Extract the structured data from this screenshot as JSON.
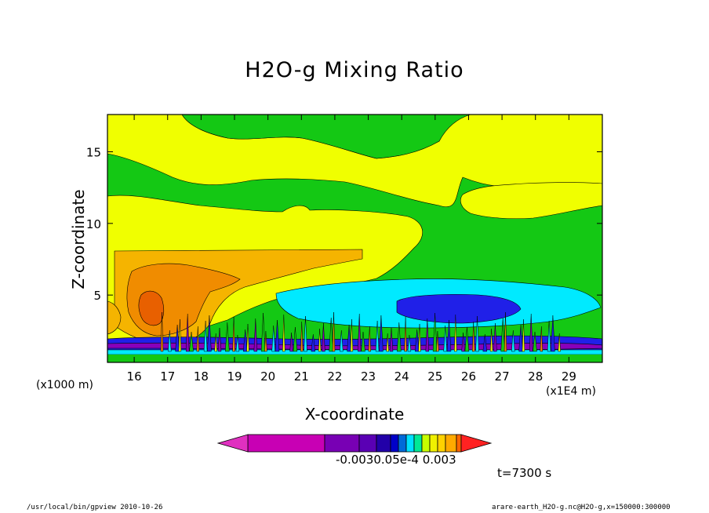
{
  "chart_data": {
    "type": "heatmap",
    "title": "H2O-g Mixing Ratio",
    "xlabel": "X-coordinate",
    "ylabel": "Z-coordinate",
    "x_unit_left": "(x1000 m)",
    "x_unit_right": "(x1E4 m)",
    "xlim": [
      15.2,
      30
    ],
    "ylim": [
      0.3,
      17.6
    ],
    "x_ticks": [
      16,
      17,
      18,
      19,
      20,
      21,
      22,
      23,
      24,
      25,
      26,
      27,
      28,
      29
    ],
    "y_ticks": [
      5,
      10,
      15
    ],
    "grid": false,
    "colorbar": {
      "colors": [
        "#c800b4",
        "#7800b4",
        "#5a00b4",
        "#2200a8",
        "#0000c8",
        "#006ad8",
        "#00e0ff",
        "#00e896",
        "#c8ff00",
        "#f0f000",
        "#ffd200",
        "#ffaa00",
        "#ff6600"
      ],
      "low_arrow_color": "#e030c0",
      "high_arrow_color": "#ff2222",
      "labels": [
        "-0.003",
        "0.0",
        "5e-4",
        "0.003"
      ],
      "label_overlap_text": "-0.0030.05e-4  0.003"
    },
    "regions": [
      {
        "level": "green",
        "color": "#14c814",
        "description": "background"
      },
      {
        "level": "yellow",
        "color": "#f0ff00"
      },
      {
        "level": "light-orange",
        "color": "#f5b400"
      },
      {
        "level": "orange",
        "color": "#f08c00"
      },
      {
        "level": "dark-orange",
        "color": "#e86000"
      },
      {
        "level": "cyan",
        "color": "#00eaff"
      },
      {
        "level": "blue",
        "color": "#2020e8"
      },
      {
        "level": "purple",
        "color": "#8800bb"
      }
    ]
  },
  "annotations": {
    "time": "t=7300 s",
    "footer_left": "/usr/local/bin/gpview  2010-10-26",
    "footer_right": "arare-earth_H2O-g.nc@H2O-g,x=150000:300000"
  }
}
